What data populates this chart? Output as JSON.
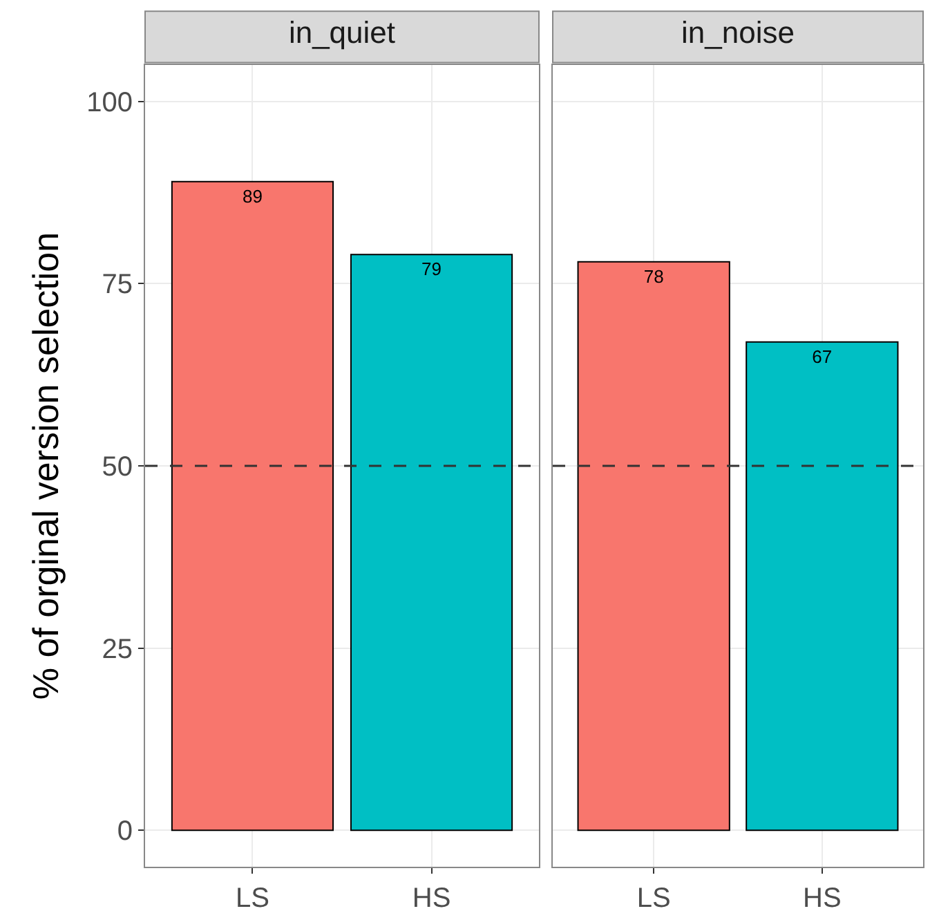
{
  "chart_data": [
    {
      "type": "bar",
      "title": "in_quiet",
      "ylabel": "% of orginal version selection",
      "categories": [
        "LS",
        "HS"
      ],
      "values": [
        89,
        79
      ],
      "colors": [
        "#f8766d",
        "#00bfc4"
      ],
      "data_labels": true,
      "ylim": [
        -5,
        105
      ],
      "yticks": [
        0,
        25,
        50,
        75,
        100
      ],
      "grid": true,
      "ref_lines": [
        {
          "axis": "y",
          "value": 50,
          "line_style": "dashed",
          "color": "#333333"
        }
      ]
    },
    {
      "type": "bar",
      "title": "in_noise",
      "categories": [
        "LS",
        "HS"
      ],
      "values": [
        78,
        67
      ],
      "colors": [
        "#f8766d",
        "#00bfc4"
      ],
      "data_labels": true,
      "ylim": [
        -5,
        105
      ],
      "yticks": [
        0,
        25,
        50,
        75,
        100
      ],
      "grid": true,
      "tick_labels": "x",
      "ref_lines": [
        {
          "axis": "y",
          "value": 50,
          "line_style": "dashed",
          "color": "#333333"
        }
      ]
    }
  ]
}
